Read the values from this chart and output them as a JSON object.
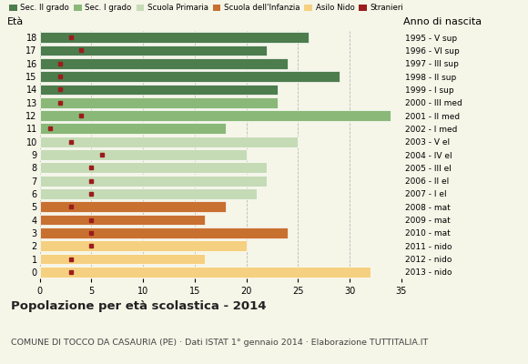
{
  "ages": [
    18,
    17,
    16,
    15,
    14,
    13,
    12,
    11,
    10,
    9,
    8,
    7,
    6,
    5,
    4,
    3,
    2,
    1,
    0
  ],
  "bar_values": [
    26,
    22,
    24,
    29,
    23,
    23,
    34,
    18,
    25,
    20,
    22,
    22,
    21,
    18,
    16,
    24,
    20,
    16,
    32
  ],
  "stranieri": [
    3,
    4,
    2,
    2,
    2,
    2,
    4,
    1,
    3,
    6,
    5,
    5,
    5,
    3,
    5,
    5,
    5,
    3,
    3
  ],
  "anno_labels": [
    "1995 - V sup",
    "1996 - VI sup",
    "1997 - III sup",
    "1998 - II sup",
    "1999 - I sup",
    "2000 - III med",
    "2001 - II med",
    "2002 - I med",
    "2003 - V el",
    "2004 - IV el",
    "2005 - III el",
    "2006 - II el",
    "2007 - I el",
    "2008 - mat",
    "2009 - mat",
    "2010 - mat",
    "2011 - nido",
    "2012 - nido",
    "2013 - nido"
  ],
  "bar_colors": [
    "#4d7c4d",
    "#4d7c4d",
    "#4d7c4d",
    "#4d7c4d",
    "#4d7c4d",
    "#8ab878",
    "#8ab878",
    "#8ab878",
    "#c5dbb5",
    "#c5dbb5",
    "#c5dbb5",
    "#c5dbb5",
    "#c5dbb5",
    "#c87030",
    "#c87030",
    "#c87030",
    "#f5d080",
    "#f5d080",
    "#f5d080"
  ],
  "stranieri_color": "#9b1c1c",
  "title": "Popolazione per età scolastica - 2014",
  "subtitle": "COMUNE DI TOCCO DA CASAURIA (PE) · Dati ISTAT 1° gennaio 2014 · Elaborazione TUTTITALIA.IT",
  "xlim": [
    0,
    35
  ],
  "xticks": [
    0,
    5,
    10,
    15,
    20,
    25,
    30,
    35
  ],
  "bg_color": "#f5f5e8",
  "legend_labels": [
    "Sec. II grado",
    "Sec. I grado",
    "Scuola Primaria",
    "Scuola dell'Infanzia",
    "Asilo Nido",
    "Stranieri"
  ],
  "legend_colors": [
    "#4d7c4d",
    "#8ab878",
    "#c5dbb5",
    "#c87030",
    "#f5d080",
    "#9b1c1c"
  ]
}
